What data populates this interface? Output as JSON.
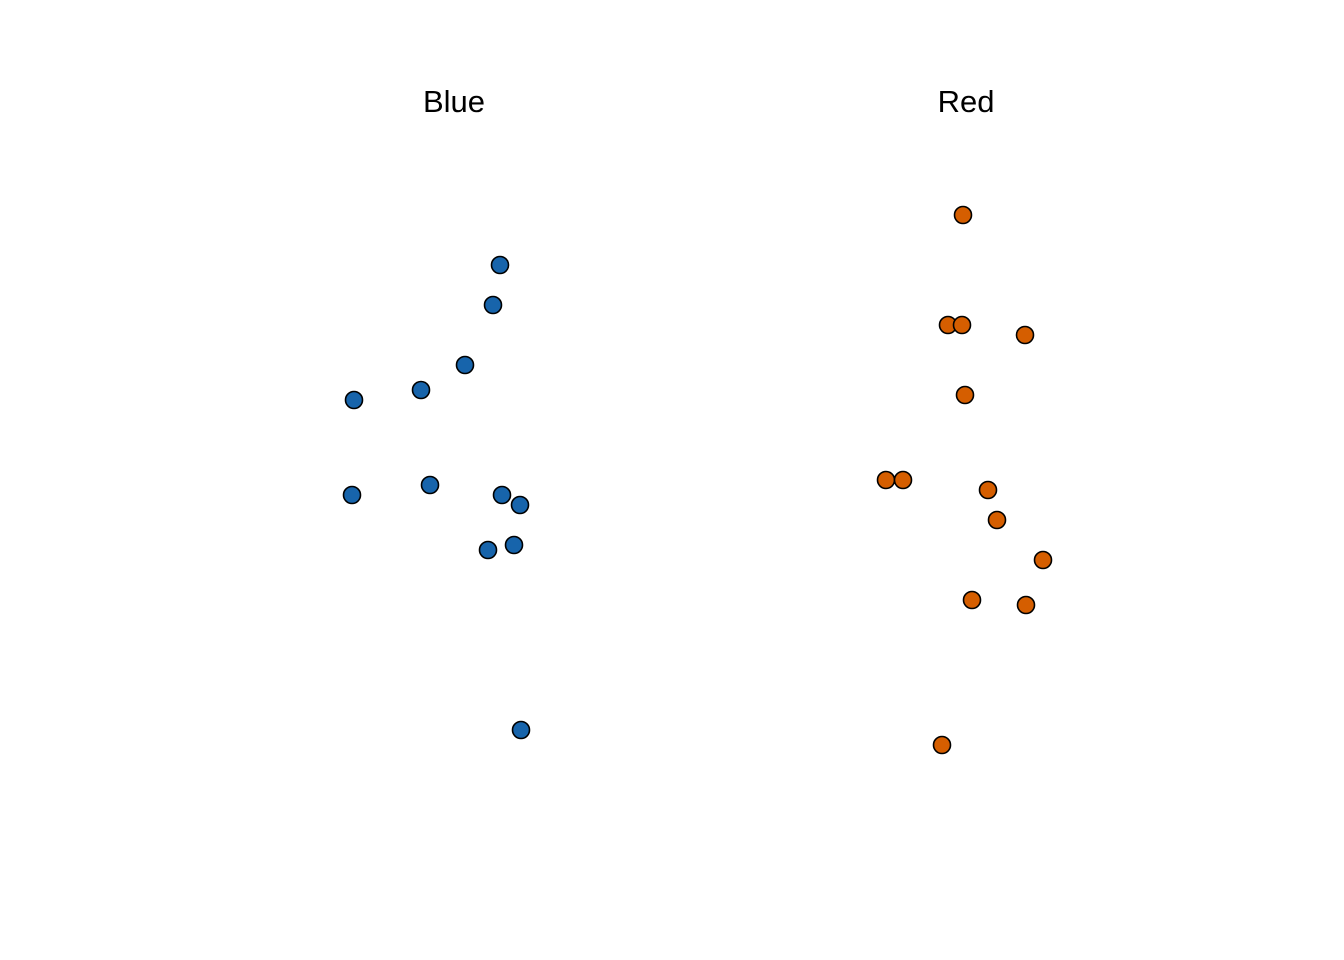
{
  "chart_data": {
    "type": "scatter",
    "colors": {
      "Blue": "#1764AB",
      "Red": "#D55E00",
      "point_outline": "#000000"
    },
    "panels": [
      {
        "title": "Blue",
        "points": [
          {
            "x": 0.46,
            "y": 0.83
          },
          {
            "x": 0.39,
            "y": 0.75
          },
          {
            "x": 0.11,
            "y": 0.63
          },
          {
            "x": -0.33,
            "y": 0.58
          },
          {
            "x": -1.0,
            "y": 0.56
          },
          {
            "x": -0.24,
            "y": 0.39
          },
          {
            "x": -1.02,
            "y": 0.37
          },
          {
            "x": 0.48,
            "y": 0.37
          },
          {
            "x": 0.66,
            "y": 0.35
          },
          {
            "x": 0.6,
            "y": 0.27
          },
          {
            "x": 0.34,
            "y": 0.26
          },
          {
            "x": 0.67,
            "y": -0.1
          }
        ]
      },
      {
        "title": "Red",
        "points": [
          {
            "x": -0.03,
            "y": 0.93
          },
          {
            "x": -0.18,
            "y": 0.71
          },
          {
            "x": -0.04,
            "y": 0.71
          },
          {
            "x": 0.59,
            "y": 0.69
          },
          {
            "x": -0.01,
            "y": 0.57
          },
          {
            "x": -0.8,
            "y": 0.4
          },
          {
            "x": -0.63,
            "y": 0.4
          },
          {
            "x": 0.22,
            "y": 0.38
          },
          {
            "x": 0.31,
            "y": 0.32
          },
          {
            "x": 0.77,
            "y": 0.24
          },
          {
            "x": 0.06,
            "y": 0.16
          },
          {
            "x": 0.6,
            "y": 0.15
          },
          {
            "x": -0.24,
            "y": -0.13
          }
        ]
      }
    ],
    "xlim": [
      -1.5,
      1.5
    ],
    "ylim": [
      -0.4,
      1.2
    ],
    "grid": false,
    "axes_visible": false
  }
}
